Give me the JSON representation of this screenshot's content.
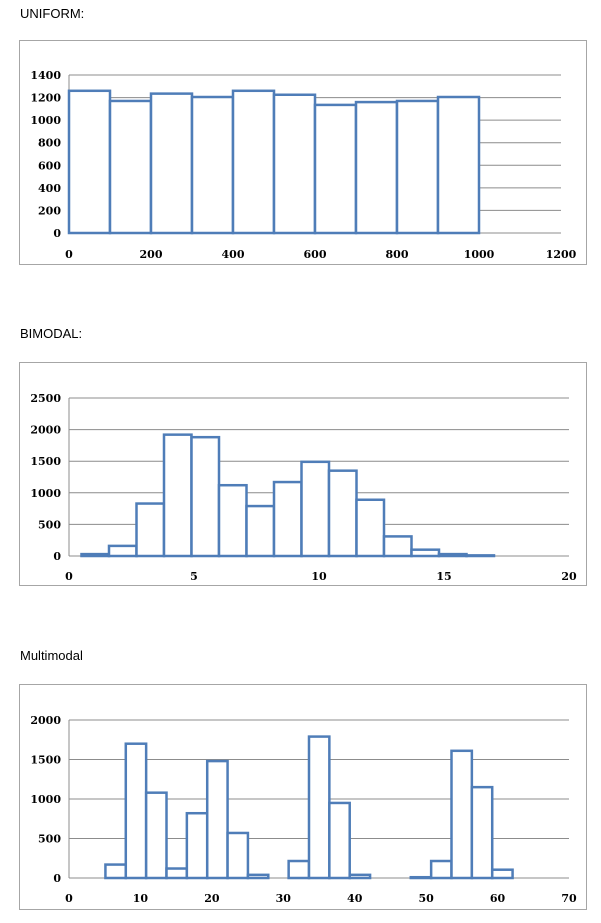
{
  "colors": {
    "bar_stroke": "#4f7db8",
    "grid": "#8c8c8c",
    "frame": "#a6a6a6",
    "axis": "#8c8c8c"
  },
  "chart_data": [
    {
      "section_title": "UNIFORM:",
      "type": "bar",
      "title": "",
      "xlabel": "",
      "ylabel": "",
      "grid": true,
      "xlim": [
        0,
        1200
      ],
      "ylim": [
        0,
        1400
      ],
      "x_ticks": [
        0,
        200,
        400,
        600,
        800,
        1000,
        1200
      ],
      "y_ticks": [
        0,
        200,
        400,
        600,
        800,
        1000,
        1200,
        1400
      ],
      "bin_width": 100,
      "bins": [
        0,
        100,
        200,
        300,
        400,
        500,
        600,
        700,
        800,
        900
      ],
      "values": [
        1260,
        1170,
        1235,
        1205,
        1260,
        1225,
        1135,
        1160,
        1170,
        1205
      ]
    },
    {
      "section_title": "BIMODAL:",
      "type": "bar",
      "title": "",
      "xlabel": "",
      "ylabel": "",
      "grid": true,
      "xlim": [
        0,
        20
      ],
      "ylim": [
        0,
        2500
      ],
      "x_ticks": [
        0,
        5,
        10,
        15,
        20
      ],
      "y_ticks": [
        0,
        500,
        1000,
        1500,
        2000,
        2500
      ],
      "bin_width": 1.1,
      "bins": [
        0.5,
        1.6,
        2.7,
        3.8,
        4.9,
        6.0,
        7.1,
        8.2,
        9.3,
        10.4,
        11.5,
        12.6,
        13.7,
        14.8,
        15.9
      ],
      "values": [
        30,
        160,
        830,
        1920,
        1880,
        1120,
        790,
        1170,
        1490,
        1350,
        890,
        310,
        100,
        30,
        10
      ]
    },
    {
      "section_title": "Multimodal",
      "type": "bar",
      "title": "",
      "xlabel": "",
      "ylabel": "",
      "grid": true,
      "xlim": [
        0,
        70
      ],
      "ylim": [
        0,
        2000
      ],
      "x_ticks": [
        0,
        10,
        20,
        30,
        40,
        50,
        60,
        70
      ],
      "y_ticks": [
        0,
        500,
        1000,
        1500,
        2000
      ],
      "bin_width": 2.85,
      "bins": [
        5.1,
        7.95,
        10.8,
        13.65,
        16.5,
        19.35,
        22.2,
        25.05,
        27.9,
        30.75,
        33.6,
        36.45,
        39.3,
        42.15,
        45.0,
        47.85,
        50.7,
        53.55,
        56.4,
        59.25
      ],
      "values": [
        170,
        1700,
        1080,
        120,
        820,
        1480,
        570,
        40,
        0,
        215,
        1790,
        950,
        40,
        0,
        0,
        10,
        215,
        1610,
        1150,
        105
      ]
    }
  ]
}
